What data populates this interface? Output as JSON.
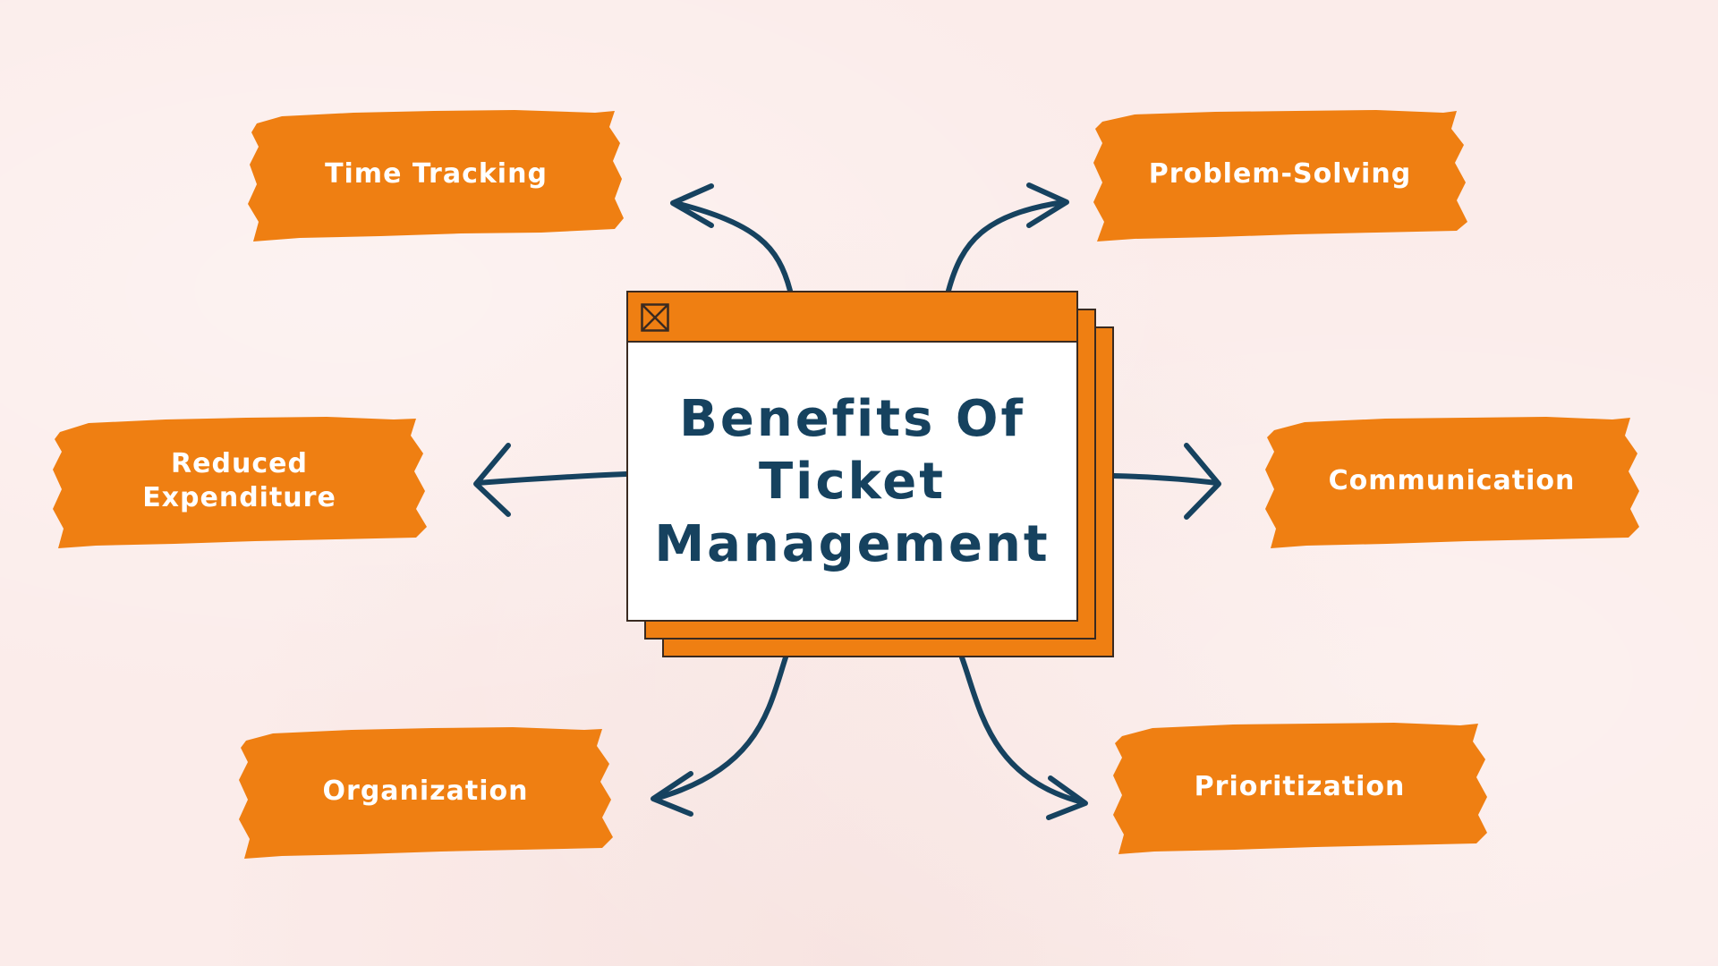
{
  "center": {
    "title": "Benefits Of Ticket Management"
  },
  "benefits": [
    {
      "label": "Time Tracking"
    },
    {
      "label": "Problem-Solving"
    },
    {
      "label": "Reduced Expenditure"
    },
    {
      "label": "Communication"
    },
    {
      "label": "Organization"
    },
    {
      "label": "Prioritization"
    }
  ],
  "colors": {
    "background": "#fbecea",
    "brush": "#ef7f12",
    "arrow": "#16425f",
    "title_text": "#16425f",
    "label_text": "#ffffff"
  },
  "icons": {
    "window_close": "close-box-icon",
    "connector": "curved-arrow-icon"
  }
}
